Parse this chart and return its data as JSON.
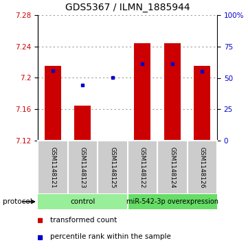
{
  "title": "GDS5367 / ILMN_1885944",
  "samples": [
    "GSM1148121",
    "GSM1148123",
    "GSM1148125",
    "GSM1148122",
    "GSM1148124",
    "GSM1148126"
  ],
  "red_values": [
    7.215,
    7.165,
    7.121,
    7.244,
    7.244,
    7.215
  ],
  "blue_values_pct": [
    56,
    44,
    50,
    61,
    61,
    55
  ],
  "ylim": [
    7.12,
    7.28
  ],
  "yticks_left": [
    7.12,
    7.16,
    7.2,
    7.24,
    7.28
  ],
  "yticks_right": [
    0,
    25,
    50,
    75,
    100
  ],
  "bar_bottom": 7.12,
  "bar_color": "#cc0000",
  "dot_color": "#0000cc",
  "grid_color": "#999999",
  "sample_bg": "#cccccc",
  "control_bg": "#99ee99",
  "overexp_bg": "#66dd66",
  "title_fontsize": 10,
  "tick_fontsize": 7.5,
  "legend_fontsize": 7.5,
  "sample_fontsize": 6.5,
  "proto_fontsize": 7.5
}
